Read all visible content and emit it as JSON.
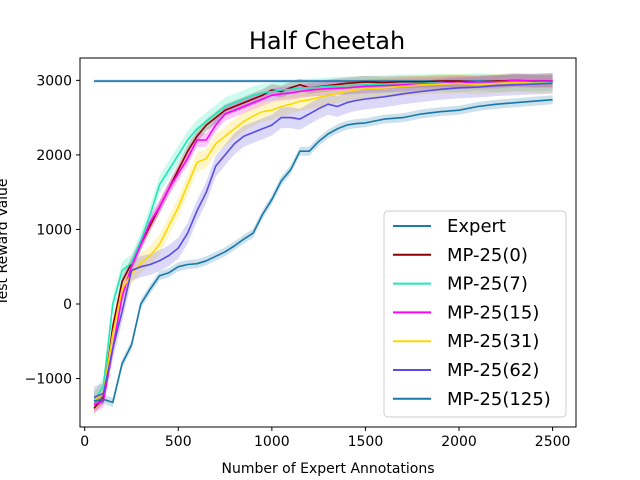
{
  "chart_data": {
    "type": "line",
    "title": "Half Cheetah",
    "xlabel": "Number of Expert Annotations",
    "ylabel": "Test Reward Value",
    "xlim": [
      -25,
      2625
    ],
    "ylim": [
      -1650,
      3300
    ],
    "xticks": [
      0,
      500,
      1000,
      1500,
      2000,
      2500
    ],
    "yticks": [
      -1000,
      0,
      1000,
      2000,
      3000
    ],
    "xtick_labels": [
      "0",
      "500",
      "1000",
      "1500",
      "2000",
      "2500"
    ],
    "ytick_labels": [
      "−1000",
      "0",
      "1000",
      "2000",
      "3000"
    ],
    "grid": false,
    "legend_position": "lower-right",
    "series": [
      {
        "name": "Expert",
        "color": "#1f77b4",
        "x": [
          50,
          2500
        ],
        "y": [
          2990,
          2990
        ],
        "band": 20
      },
      {
        "name": "MP-25(0)",
        "color": "#8b0000",
        "x": [
          50,
          100,
          150,
          200,
          250,
          300,
          350,
          400,
          450,
          500,
          550,
          600,
          650,
          700,
          750,
          800,
          850,
          900,
          950,
          1000,
          1050,
          1100,
          1150,
          1200,
          1300,
          1400,
          1500,
          1600,
          1700,
          1800,
          1900,
          2000,
          2100,
          2200,
          2300,
          2400,
          2500
        ],
        "y": [
          -1400,
          -1250,
          -300,
          300,
          550,
          800,
          1050,
          1300,
          1550,
          1800,
          2050,
          2250,
          2400,
          2500,
          2600,
          2650,
          2700,
          2750,
          2800,
          2870,
          2850,
          2900,
          2940,
          2900,
          2930,
          2960,
          2980,
          2970,
          2980,
          2980,
          2990,
          2990,
          2980,
          2990,
          3000,
          2990,
          2990
        ],
        "band": 80
      },
      {
        "name": "MP-25(7)",
        "color": "#1de9b6",
        "x": [
          50,
          100,
          150,
          200,
          250,
          300,
          350,
          400,
          450,
          500,
          550,
          600,
          650,
          700,
          750,
          800,
          850,
          900,
          950,
          1000,
          1050,
          1100,
          1150,
          1200,
          1300,
          1400,
          1500,
          1600,
          1700,
          1800,
          1900,
          2000,
          2100,
          2200,
          2300,
          2400,
          2500
        ],
        "y": [
          -1300,
          -1100,
          0,
          450,
          550,
          850,
          1200,
          1600,
          1800,
          2000,
          2200,
          2350,
          2450,
          2550,
          2650,
          2700,
          2750,
          2800,
          2830,
          2850,
          2870,
          2880,
          2900,
          2900,
          2920,
          2930,
          2940,
          2950,
          2960,
          2960,
          2970,
          2960,
          2980,
          2960,
          2980,
          2970,
          2980
        ],
        "band": 120
      },
      {
        "name": "MP-25(15)",
        "color": "#ff00ff",
        "x": [
          50,
          100,
          150,
          200,
          250,
          300,
          350,
          400,
          450,
          500,
          550,
          600,
          650,
          700,
          750,
          800,
          850,
          900,
          950,
          1000,
          1050,
          1100,
          1150,
          1200,
          1300,
          1400,
          1500,
          1600,
          1700,
          1800,
          1900,
          2000,
          2100,
          2200,
          2300,
          2400,
          2500
        ],
        "y": [
          -1350,
          -1300,
          -600,
          100,
          500,
          800,
          1100,
          1300,
          1550,
          1750,
          1950,
          2200,
          2200,
          2400,
          2550,
          2600,
          2650,
          2700,
          2750,
          2800,
          2820,
          2830,
          2850,
          2870,
          2890,
          2900,
          2920,
          2930,
          2940,
          2950,
          2960,
          2970,
          2980,
          2980,
          3000,
          2990,
          2990
        ],
        "band": 90
      },
      {
        "name": "MP-25(31)",
        "color": "#ffd700",
        "x": [
          50,
          100,
          150,
          200,
          250,
          300,
          350,
          400,
          450,
          500,
          550,
          600,
          650,
          700,
          750,
          800,
          850,
          900,
          950,
          1000,
          1050,
          1100,
          1150,
          1200,
          1300,
          1400,
          1500,
          1600,
          1700,
          1800,
          1900,
          2000,
          2100,
          2200,
          2300,
          2400,
          2500
        ],
        "y": [
          -1300,
          -1200,
          -400,
          200,
          400,
          550,
          650,
          800,
          1050,
          1300,
          1600,
          1900,
          1950,
          2150,
          2250,
          2350,
          2450,
          2520,
          2580,
          2600,
          2650,
          2680,
          2720,
          2740,
          2800,
          2850,
          2890,
          2900,
          2920,
          2940,
          2950,
          2960,
          2940,
          2960,
          2970,
          2960,
          2960
        ],
        "band": 130
      },
      {
        "name": "MP-25(62)",
        "color": "#5b4ce0",
        "x": [
          50,
          100,
          150,
          200,
          250,
          300,
          350,
          400,
          450,
          500,
          550,
          600,
          650,
          700,
          750,
          800,
          850,
          900,
          950,
          1000,
          1050,
          1100,
          1150,
          1200,
          1250,
          1300,
          1350,
          1400,
          1450,
          1500,
          1600,
          1700,
          1800,
          1900,
          2000,
          2100,
          2200,
          2300,
          2400,
          2500
        ],
        "y": [
          -1250,
          -1200,
          -600,
          -100,
          450,
          500,
          530,
          580,
          650,
          750,
          950,
          1250,
          1500,
          1850,
          2000,
          2150,
          2250,
          2300,
          2350,
          2400,
          2500,
          2500,
          2480,
          2550,
          2620,
          2680,
          2650,
          2700,
          2730,
          2750,
          2780,
          2820,
          2850,
          2880,
          2900,
          2910,
          2930,
          2940,
          2950,
          2960
        ],
        "band": 140
      },
      {
        "name": "MP-25(125)",
        "color": "#1878a8",
        "x": [
          50,
          100,
          150,
          200,
          250,
          300,
          350,
          400,
          450,
          500,
          550,
          600,
          650,
          700,
          750,
          800,
          850,
          900,
          950,
          1000,
          1050,
          1100,
          1150,
          1200,
          1250,
          1300,
          1350,
          1400,
          1450,
          1500,
          1600,
          1700,
          1800,
          1900,
          2000,
          2100,
          2200,
          2300,
          2400,
          2500
        ],
        "y": [
          -1300,
          -1280,
          -1320,
          -800,
          -550,
          0,
          200,
          380,
          420,
          500,
          530,
          540,
          580,
          640,
          700,
          780,
          870,
          950,
          1200,
          1400,
          1650,
          1800,
          2050,
          2050,
          2180,
          2280,
          2350,
          2400,
          2420,
          2430,
          2480,
          2500,
          2550,
          2580,
          2600,
          2650,
          2680,
          2700,
          2720,
          2740
        ],
        "band": 60
      }
    ]
  }
}
